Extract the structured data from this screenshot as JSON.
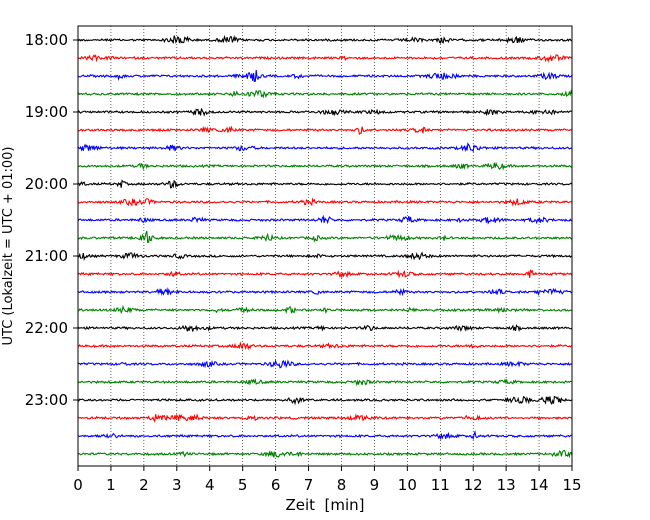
{
  "chart_data": {
    "type": "line",
    "title": "",
    "xlabel": "Zeit  [min]",
    "ylabel": "UTC (Lokalzeit = UTC + 01:00)",
    "xlim": [
      0,
      15
    ],
    "x_ticks": [
      "0",
      "1",
      "2",
      "3",
      "4",
      "5",
      "6",
      "7",
      "8",
      "9",
      "10",
      "11",
      "12",
      "13",
      "14",
      "15"
    ],
    "y_ticks": [
      "18:00",
      "19:00",
      "20:00",
      "21:00",
      "22:00",
      "23:00"
    ],
    "trace_interval_min": 15,
    "trace_start": "18:00",
    "trace_count": 24,
    "color_cycle": [
      "#000000",
      "#ff0000",
      "#0000ff",
      "#008000"
    ],
    "grid": "vertical dotted at each minute",
    "legend": "none"
  }
}
